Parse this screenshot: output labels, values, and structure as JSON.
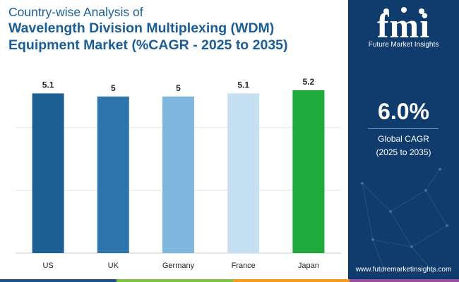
{
  "title": {
    "line1": "Country-wise Analysis of",
    "line2": "Wavelength Division Multiplexing (WDM)",
    "line3": "Equipment Market (%CAGR - 2025 to 2035)"
  },
  "chart_data": {
    "type": "bar",
    "title": "Country-wise Analysis of Wavelength Division Multiplexing (WDM) Equipment Market (%CAGR - 2025 to 2035)",
    "categories": [
      "US",
      "UK",
      "Germany",
      "France",
      "Japan"
    ],
    "values": [
      5.1,
      5,
      5,
      5.1,
      5.2
    ],
    "value_labels": [
      "5.1",
      "5",
      "5",
      "5.1",
      "5.2"
    ],
    "bar_colors": [
      "#1c5f93",
      "#2e74ad",
      "#7fb7de",
      "#c5e0f3",
      "#1eaa3c"
    ],
    "ylim": [
      0,
      5.2
    ],
    "grid": true,
    "xlabel": "",
    "ylabel": ""
  },
  "brand": {
    "logo": "fmi",
    "name": "Future Market Insights",
    "website": "www.futuremarketinsights.com"
  },
  "highlight": {
    "value": "6.0%",
    "label_line1": "Global CAGR",
    "label_line2": "(2025 to 2035)"
  },
  "colors": {
    "title": "#1b5f96",
    "panel": "#0f3c6c",
    "bottom_bar": [
      "#1e4f86",
      "#7dc242",
      "#f39c1f",
      "#9b4fa0"
    ]
  }
}
